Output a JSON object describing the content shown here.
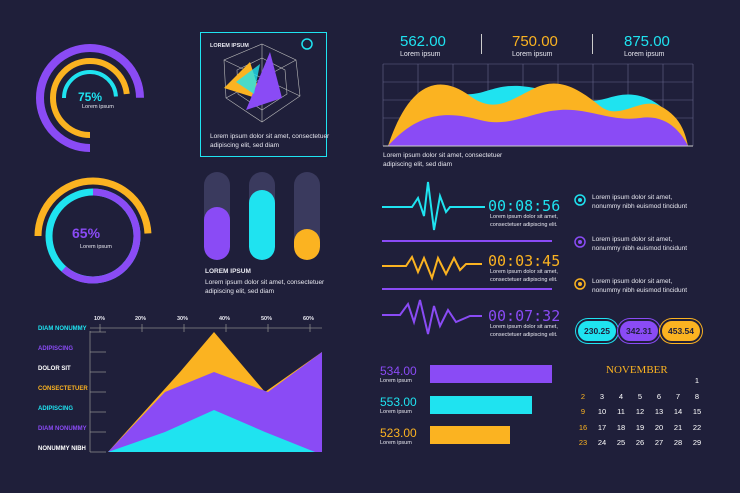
{
  "colors": {
    "bg": "#1f1f3a",
    "purple": "#8a4bf5",
    "yellow": "#fbb321",
    "cyan": "#1fe3f0",
    "grid": "#55557a"
  },
  "ring1": {
    "value": 75,
    "label": "75%",
    "sub": "Lorem ipsum"
  },
  "ring2": {
    "value": 65,
    "label": "65%",
    "sub": "Lorem ipsum"
  },
  "radar": {
    "title": "LOREM IPSUM",
    "text1": "Lorem ipsum dolor sit amet, consectetuer",
    "text2": "adipiscing elit, sed diam"
  },
  "vbars": {
    "title": "LOREM IPSUM",
    "text1": "Lorem ipsum dolor sit amet, consectetuer",
    "text2": "adipiscing elit, sed diam",
    "levels": [
      0.6,
      0.8,
      0.35
    ]
  },
  "stats": [
    {
      "value": "562.00",
      "label": "Lorem ipsum"
    },
    {
      "value": "750.00",
      "label": "Lorem ipsum"
    },
    {
      "value": "875.00",
      "label": "Lorem ipsum"
    }
  ],
  "area_caption": {
    "text1": "Lorem ipsum dolor sit amet, consectetuer",
    "text2": "adipiscing elit, sed diam"
  },
  "waves": [
    {
      "time": "00:08:56",
      "text1": "Lorem ipsum dolor sit amet,",
      "text2": "consectetuer adipiscing elit."
    },
    {
      "time": "00:03:45",
      "text1": "Lorem ipsum dolor sit amet,",
      "text2": "consectetuer adipiscing elit."
    },
    {
      "time": "00:07:32",
      "text1": "Lorem ipsum dolor sit amet,",
      "text2": "consectetuer adipiscing elit."
    }
  ],
  "notes": [
    {
      "text1": "Lorem ipsum dolor sit amet,",
      "text2": "nonummy nibh euismod tincidunt"
    },
    {
      "text1": "Lorem ipsum dolor sit amet,",
      "text2": "nonummy nibh euismod tincidunt"
    },
    {
      "text1": "Lorem ipsum dolor sit amet,",
      "text2": "nonummy nibh euismod tincidunt"
    }
  ],
  "pills": [
    "230.25",
    "342.31",
    "453.54"
  ],
  "hbars": [
    {
      "value": "534.00",
      "label": "Lorem ipsum",
      "fraction": 1.0
    },
    {
      "value": "553.00",
      "label": "Lorem ipsum",
      "fraction": 0.84
    },
    {
      "value": "523.00",
      "label": "Lorem ipsum",
      "fraction": 0.64
    }
  ],
  "calendar": {
    "month": "NOVEMBER",
    "rows": [
      [
        "",
        "",
        "",
        "",
        "",
        "",
        "1"
      ],
      [
        "2",
        "3",
        "4",
        "5",
        "6",
        "7",
        "8"
      ],
      [
        "9",
        "10",
        "11",
        "12",
        "13",
        "14",
        "15"
      ],
      [
        "16",
        "17",
        "18",
        "19",
        "20",
        "21",
        "22"
      ],
      [
        "23",
        "24",
        "25",
        "26",
        "27",
        "28",
        "29"
      ]
    ]
  },
  "chart_data": [
    {
      "type": "area",
      "title": "",
      "x_ticks": [
        "10%",
        "20%",
        "30%",
        "40%",
        "50%",
        "60%"
      ],
      "legend": [
        "DIAM NONUMMY",
        "ADIPISCING",
        "DOLOR SIT",
        "CONSECTETUER",
        "ADIPISCING",
        "DIAM NONUMMY",
        "NONUMMY NIBH"
      ],
      "series": [
        {
          "values": [
            0,
            2,
            6,
            3,
            5
          ]
        },
        {
          "values": [
            0,
            1.5,
            4,
            2.5,
            4.5
          ]
        },
        {
          "values": [
            0,
            1,
            3,
            1,
            0
          ]
        }
      ]
    },
    {
      "type": "area",
      "title": "",
      "series": [
        {
          "values": [
            0.6,
            0.9,
            0.7,
            0.85,
            0.75,
            0.8
          ]
        },
        {
          "values": [
            0.4,
            0.5,
            0.6,
            0.5,
            0.65,
            0.55
          ]
        }
      ]
    }
  ]
}
